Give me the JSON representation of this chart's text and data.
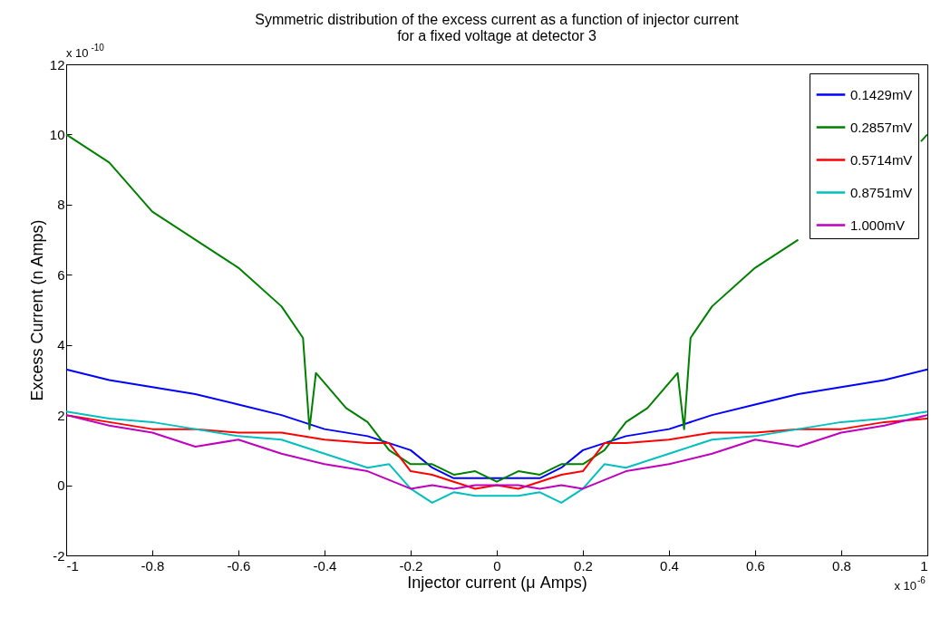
{
  "chart_data": {
    "type": "line",
    "title": "Symmetric distribution of the excess current as a function of injector current\nfor a fixed voltage at detector 3",
    "xlabel": "Injector current (μ Amps)",
    "ylabel": "Excess Current (n Amps)",
    "annotations": [
      "x 10$^{-10}$",
      "x 10$^{-6}$"
    ],
    "xlim": [
      -1,
      1
    ],
    "xticks": [
      -1,
      -0.8,
      -0.6,
      -0.4,
      -0.2,
      0,
      0.2,
      0.4,
      0.6,
      0.8,
      1
    ],
    "ylim": [
      -2,
      12
    ],
    "yticks": [
      -2,
      0,
      2,
      4,
      6,
      8,
      10,
      12
    ],
    "grid": false,
    "legend": "top right",
    "line_style": "solid",
    "series": [
      {
        "name": "0.1429mV",
        "color": "#0000ff",
        "x": [
          -1,
          -0.9,
          -0.8,
          -0.7,
          -0.6,
          -0.5,
          -0.4,
          -0.3,
          -0.2,
          -0.15,
          -0.1,
          -0.05,
          0,
          0.05,
          0.1,
          0.15,
          0.2,
          0.3,
          0.4,
          0.5,
          0.6,
          0.7,
          0.8,
          0.9,
          1
        ],
        "values": [
          3.3,
          3.0,
          2.8,
          2.6,
          2.3,
          2.0,
          1.6,
          1.4,
          1.0,
          0.5,
          0.2,
          0.2,
          0.2,
          0.2,
          0.2,
          0.5,
          1.0,
          1.4,
          1.6,
          2.0,
          2.3,
          2.6,
          2.8,
          3.0,
          3.3
        ]
      },
      {
        "name": "0.2857mV",
        "color": "#008000",
        "x": [
          -1,
          -0.9,
          -0.8,
          -0.7,
          -0.6,
          -0.5,
          -0.45,
          -0.435,
          -0.42,
          -0.35,
          -0.3,
          -0.25,
          -0.2,
          -0.15,
          -0.1,
          -0.05,
          0,
          0.05,
          0.1,
          0.15,
          0.2,
          0.25,
          0.3,
          0.35,
          0.42,
          0.435,
          0.45,
          0.5,
          0.6,
          0.7,
          0.8,
          0.9,
          0.985,
          1
        ],
        "values": [
          10,
          9.2,
          7.8,
          7.0,
          6.2,
          5.1,
          4.2,
          1.6,
          3.2,
          2.2,
          1.8,
          1.0,
          0.6,
          0.6,
          0.3,
          0.4,
          0.1,
          0.4,
          0.3,
          0.6,
          0.6,
          1.0,
          1.8,
          2.2,
          3.2,
          1.6,
          4.2,
          5.1,
          6.2,
          7.0,
          null,
          null,
          9.8,
          10
        ]
      },
      {
        "name": "0.5714mV",
        "color": "#ff0000",
        "x": [
          -1,
          -0.9,
          -0.8,
          -0.7,
          -0.6,
          -0.5,
          -0.4,
          -0.3,
          -0.25,
          -0.2,
          -0.15,
          -0.1,
          -0.05,
          0,
          0.05,
          0.1,
          0.15,
          0.2,
          0.25,
          0.3,
          0.4,
          0.5,
          0.6,
          0.7,
          0.8,
          0.9,
          1
        ],
        "values": [
          2.0,
          1.8,
          1.6,
          1.6,
          1.5,
          1.5,
          1.3,
          1.2,
          1.2,
          0.4,
          0.3,
          0.1,
          -0.1,
          0.0,
          -0.1,
          0.1,
          0.3,
          0.4,
          1.2,
          1.2,
          1.3,
          1.5,
          1.5,
          1.6,
          1.6,
          1.8,
          1.9
        ]
      },
      {
        "name": "0.8751mV",
        "color": "#00bfbf",
        "x": [
          -1,
          -0.9,
          -0.8,
          -0.7,
          -0.6,
          -0.5,
          -0.4,
          -0.3,
          -0.25,
          -0.2,
          -0.15,
          -0.1,
          -0.05,
          0,
          0.05,
          0.1,
          0.15,
          0.2,
          0.25,
          0.3,
          0.4,
          0.5,
          0.6,
          0.7,
          0.8,
          0.9,
          1
        ],
        "values": [
          2.1,
          1.9,
          1.8,
          1.6,
          1.4,
          1.3,
          0.9,
          0.5,
          0.6,
          -0.1,
          -0.5,
          -0.2,
          -0.3,
          -0.3,
          -0.3,
          -0.2,
          -0.5,
          -0.1,
          0.6,
          0.5,
          0.9,
          1.3,
          1.4,
          1.6,
          1.8,
          1.9,
          2.1
        ]
      },
      {
        "name": "1.000mV",
        "color": "#bf00bf",
        "x": [
          -1,
          -0.9,
          -0.8,
          -0.7,
          -0.6,
          -0.5,
          -0.4,
          -0.3,
          -0.2,
          -0.15,
          -0.1,
          -0.05,
          0,
          0.05,
          0.1,
          0.15,
          0.2,
          0.3,
          0.4,
          0.5,
          0.6,
          0.7,
          0.8,
          0.9,
          1
        ],
        "values": [
          2.0,
          1.7,
          1.5,
          1.1,
          1.3,
          0.9,
          0.6,
          0.4,
          -0.1,
          0.0,
          -0.1,
          0.0,
          0.0,
          0.0,
          -0.1,
          0.0,
          -0.1,
          0.4,
          0.6,
          0.9,
          1.3,
          1.1,
          1.5,
          1.7,
          2.0
        ]
      }
    ]
  }
}
